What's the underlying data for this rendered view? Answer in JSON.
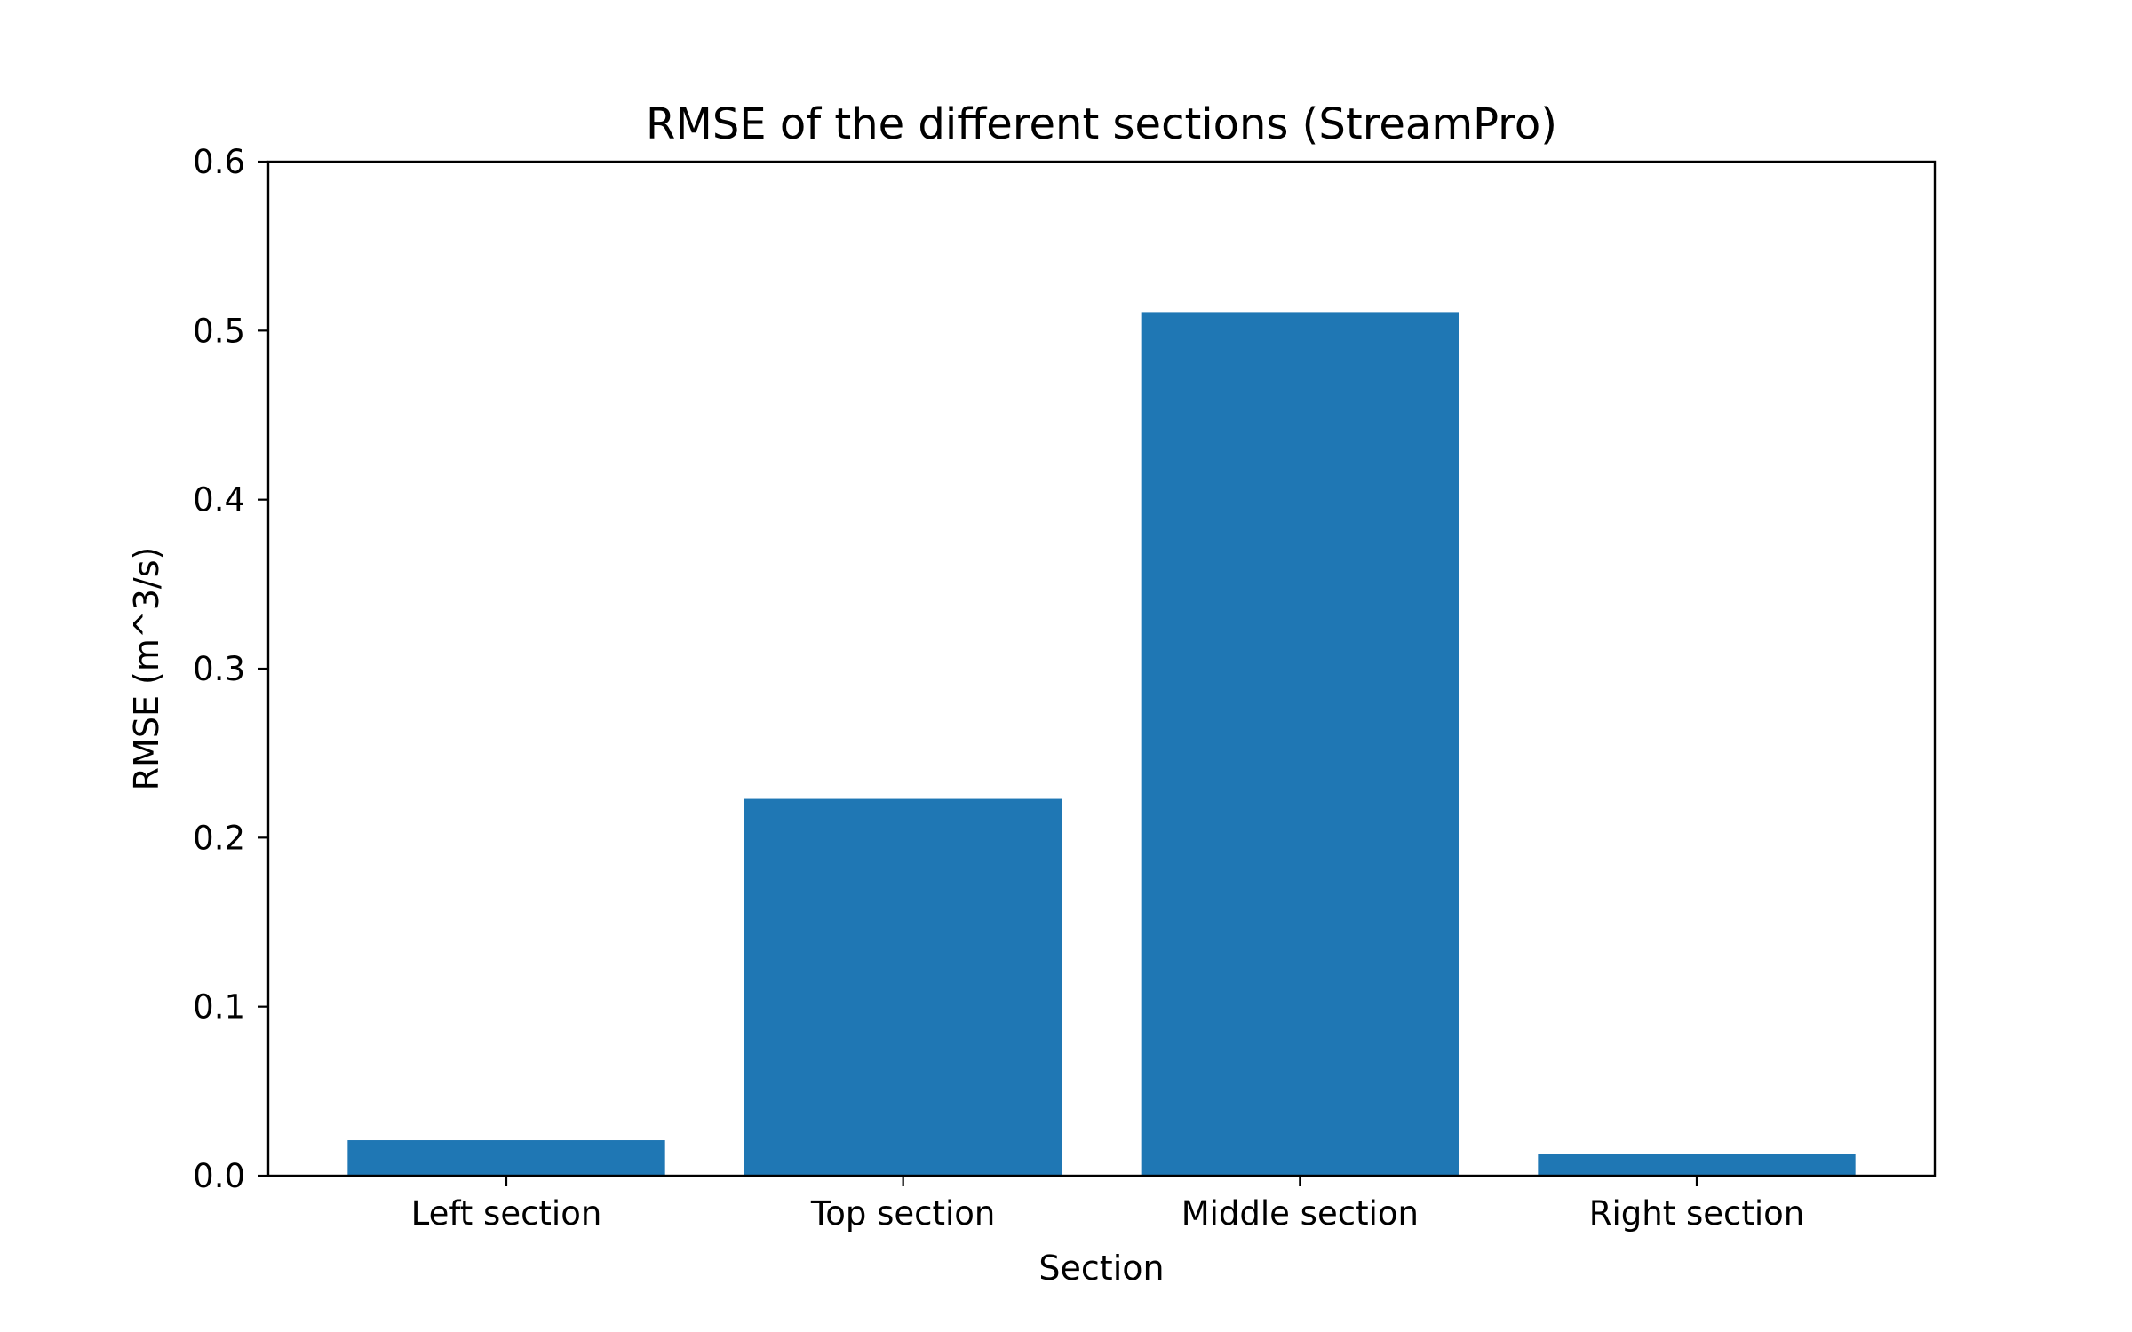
{
  "chart_data": {
    "type": "bar",
    "title": "RMSE of the different sections (StreamPro)",
    "xlabel": "Section",
    "ylabel": "RMSE (m^3/s)",
    "categories": [
      "Left section",
      "Top section",
      "Middle section",
      "Right section"
    ],
    "values": [
      0.021,
      0.223,
      0.511,
      0.013
    ],
    "ylim": [
      0,
      0.6
    ],
    "yticks": [
      "0.0",
      "0.1",
      "0.2",
      "0.3",
      "0.4",
      "0.5",
      "0.6"
    ],
    "grid": false,
    "legend": "none",
    "bar_color": "#1f77b4"
  }
}
